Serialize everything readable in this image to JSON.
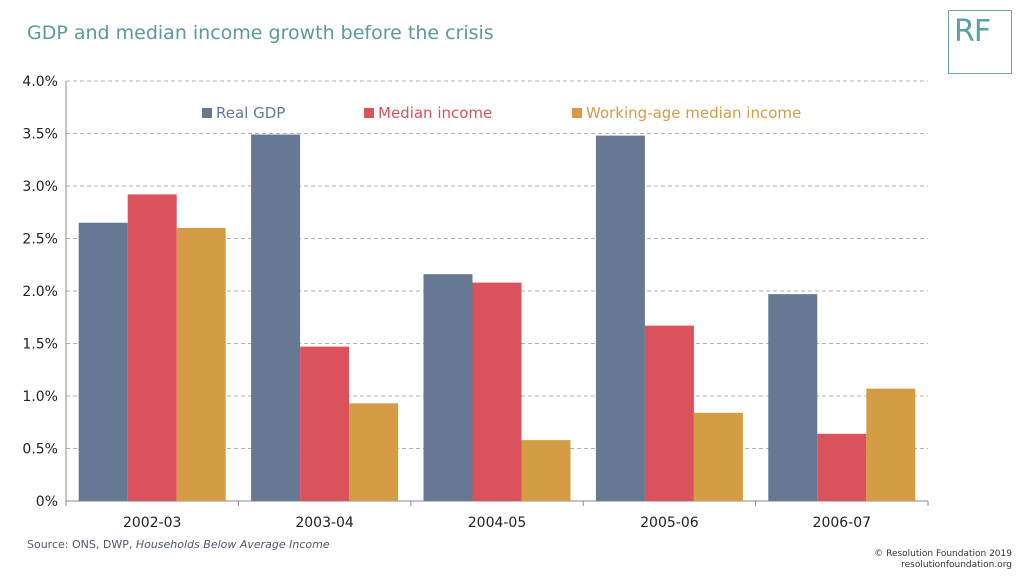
{
  "title": "GDP and median income growth before the crisis",
  "logo": "RF",
  "source": {
    "prefix": "Source: ONS, DWP, ",
    "italic": "Households Below Average Income"
  },
  "copyright": {
    "line1": "© Resolution Foundation 2019",
    "line2": "resolutionfoundation.org"
  },
  "chart_data": {
    "type": "bar",
    "categories": [
      "2002-03",
      "2003-04",
      "2004-05",
      "2005-06",
      "2006-07"
    ],
    "series": [
      {
        "name": "Real GDP",
        "values": [
          2.65,
          3.49,
          2.16,
          3.48,
          1.97
        ],
        "color": "#677893"
      },
      {
        "name": "Median income",
        "values": [
          2.92,
          1.47,
          2.08,
          1.67,
          0.64
        ],
        "color": "#da525c"
      },
      {
        "name": "Working-age median income",
        "values": [
          2.6,
          0.93,
          0.58,
          0.84,
          1.07
        ],
        "color": "#d49c45"
      }
    ],
    "ylim": [
      0,
      4.0
    ],
    "y_ticks": [
      "0%",
      "0.5%",
      "1.0%",
      "1.5%",
      "2.0%",
      "2.5%",
      "3.0%",
      "3.5%",
      "4.0%"
    ],
    "y_tick_values": [
      0,
      0.5,
      1.0,
      1.5,
      2.0,
      2.5,
      3.0,
      3.5,
      4.0
    ],
    "grid": true,
    "legend_position": "top"
  }
}
